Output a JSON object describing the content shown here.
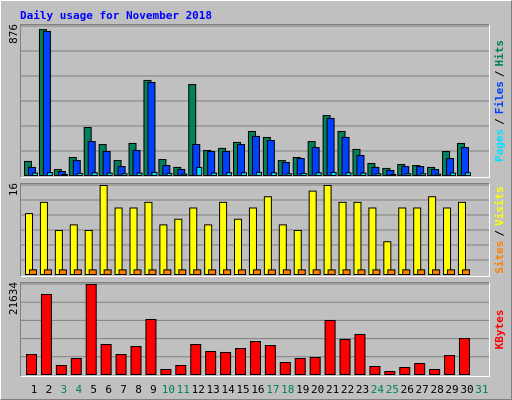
{
  "title": "Daily usage for November 2018",
  "legend_separator": "/",
  "chart_data": [
    {
      "type": "bar",
      "ylim": [
        0,
        876
      ],
      "yticks": [
        876
      ],
      "series": [
        {
          "name": "Hits",
          "color": "#00805c",
          "values": [
            88,
            858,
            41,
            111,
            286,
            187,
            93,
            193,
            561,
            99,
            53,
            537,
            152,
            164,
            199,
            263,
            228,
            93,
            111,
            204,
            356,
            263,
            158,
            76,
            47,
            70,
            64,
            53,
            146,
            193,
            null
          ]
        },
        {
          "name": "Files",
          "color": "#0040ff",
          "values": [
            53,
            847,
            29,
            93,
            204,
            146,
            58,
            152,
            549,
            64,
            41,
            187,
            146,
            146,
            187,
            234,
            210,
            82,
            105,
            169,
            339,
            228,
            123,
            53,
            35,
            58,
            58,
            41,
            105,
            169,
            null
          ]
        },
        {
          "name": "Pages",
          "color": "#00e0ff",
          "values": [
            20,
            23,
            12,
            18,
            22,
            20,
            16,
            20,
            24,
            18,
            14,
            53,
            20,
            22,
            22,
            24,
            22,
            16,
            18,
            22,
            24,
            22,
            20,
            16,
            12,
            16,
            16,
            14,
            20,
            22,
            null
          ]
        }
      ]
    },
    {
      "type": "bar",
      "ylim": [
        0,
        16
      ],
      "yticks": [
        16
      ],
      "series": [
        {
          "name": "Visits",
          "color": "#ffff00",
          "values": [
            11,
            13,
            8,
            9,
            8,
            16,
            12,
            12,
            13,
            9,
            10,
            12,
            9,
            13,
            10,
            12,
            14,
            9,
            8,
            15,
            16,
            13,
            13,
            12,
            6,
            12,
            12,
            14,
            12,
            13,
            null
          ]
        },
        {
          "name": "Sites",
          "color": "#ff8000",
          "values": [
            1,
            1,
            1,
            1,
            1,
            1,
            1,
            1,
            1,
            1,
            1,
            1,
            1,
            1,
            1,
            1,
            1,
            1,
            1,
            1,
            1,
            1,
            1,
            1,
            1,
            1,
            1,
            1,
            1,
            1,
            null
          ]
        }
      ]
    },
    {
      "type": "bar",
      "ylim": [
        0,
        21634
      ],
      "yticks": [
        21634
      ],
      "categories": [
        "1",
        "2",
        "3",
        "4",
        "5",
        "6",
        "7",
        "8",
        "9",
        "10",
        "11",
        "12",
        "13",
        "14",
        "15",
        "16",
        "17",
        "18",
        "19",
        "20",
        "21",
        "22",
        "23",
        "24",
        "25",
        "26",
        "27",
        "28",
        "29",
        "30",
        "31"
      ],
      "category_colors": [
        "#000000",
        "#000000",
        "#00805c",
        "#00805c",
        "#000000",
        "#000000",
        "#000000",
        "#000000",
        "#000000",
        "#00805c",
        "#00805c",
        "#000000",
        "#000000",
        "#000000",
        "#000000",
        "#000000",
        "#00805c",
        "#00805c",
        "#000000",
        "#000000",
        "#000000",
        "#000000",
        "#000000",
        "#00805c",
        "#00805c",
        "#000000",
        "#000000",
        "#000000",
        "#000000",
        "#000000",
        "#00805c"
      ],
      "series": [
        {
          "name": "KBytes",
          "color": "#ff0000",
          "values": [
            4990,
            19260,
            2380,
            4040,
            21634,
            7370,
            4990,
            6890,
            13310,
            1430,
            2380,
            7370,
            5710,
            5470,
            6420,
            8080,
            7130,
            3090,
            4040,
            4280,
            13080,
            8560,
            9750,
            2140,
            950,
            1900,
            2850,
            1430,
            4750,
            8800,
            null
          ]
        }
      ]
    }
  ]
}
